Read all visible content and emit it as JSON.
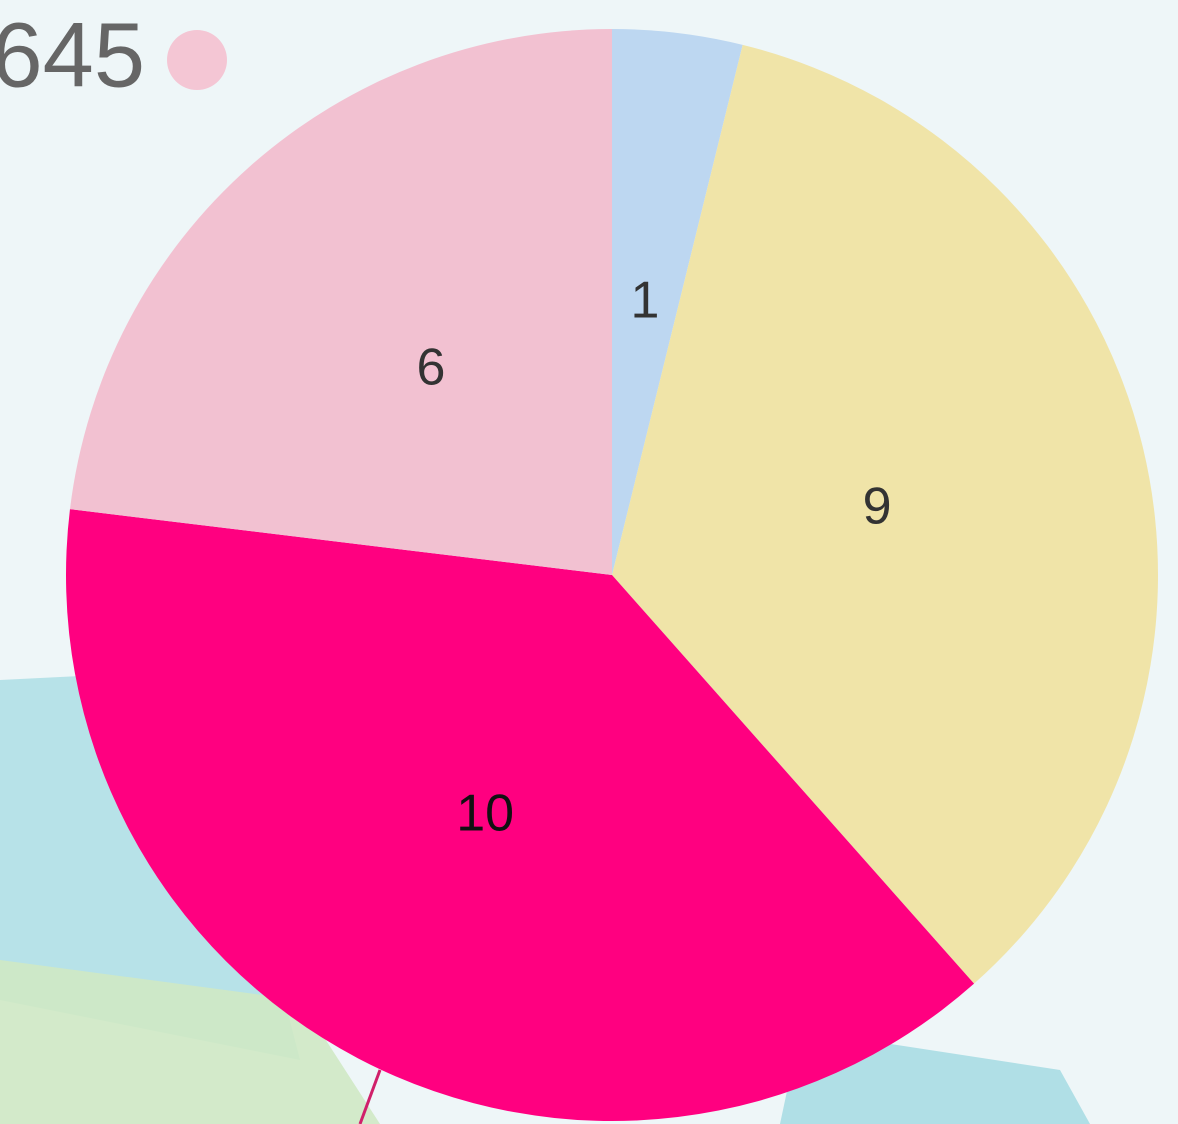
{
  "chart_data": {
    "type": "pie",
    "annotation": "645",
    "annotation_color": "#f4c6d4",
    "categories": [
      null,
      null,
      null,
      null
    ],
    "values": [
      1,
      9,
      10,
      6
    ],
    "colors": [
      "#bdd7f1",
      "#f0e4a8",
      "#ff0080",
      "#f2c1d1"
    ],
    "label_colors": [
      "#333333",
      "#333333",
      "#111111",
      "#333333"
    ]
  }
}
